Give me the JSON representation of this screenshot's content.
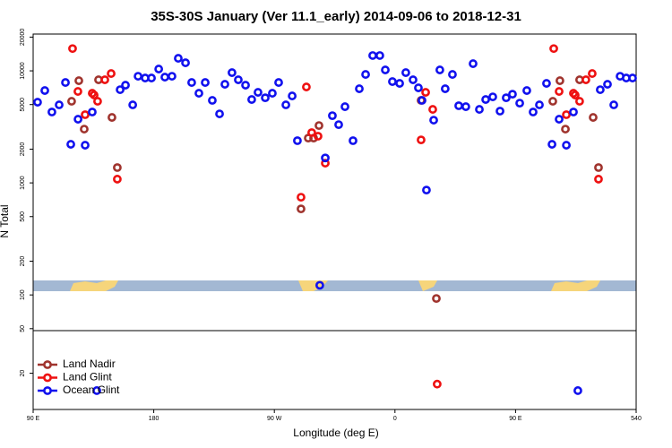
{
  "chart_data": {
    "type": "scatter",
    "title": "35S-30S January (Ver 11.1_early)   2014-09-06 to 2018-12-31",
    "x_label": "Longitude (deg E)",
    "y_label": "N Total",
    "xlim": [
      90,
      540
    ],
    "xticks": [
      {
        "value": 90,
        "label": "90 E"
      },
      180,
      {
        "value": 270,
        "label": "90 W"
      },
      {
        "value": 360,
        "label": "0"
      },
      {
        "value": 450,
        "label": "90 E"
      },
      540
    ],
    "ylim": [
      9.5,
      21300
    ],
    "yticks": [
      20,
      50,
      100,
      200,
      500,
      1000,
      2000,
      5000,
      10000,
      20000
    ],
    "y_scale": "log",
    "legend": "bottom-left",
    "series": [
      {
        "name": "Land Nadir",
        "color": "#a0342e",
        "x": [
          118.7,
          124.1,
          128.1,
          138.8,
          148.8,
          152.8,
          289.9,
          295.3,
          299.3,
          303.3,
          379.5,
          390.9,
          477.8,
          483.1,
          487.2,
          497.8,
          507.9,
          511.9
        ],
        "values": [
          5350,
          8170,
          3020,
          8320,
          3840,
          1370,
          586,
          2510,
          2510,
          3250,
          5450,
          93,
          5350,
          8170,
          3020,
          8320,
          3840,
          1370
        ]
      },
      {
        "name": "Land Glint",
        "color": "#ee1111",
        "x": [
          119.4,
          123.4,
          128.8,
          134.1,
          135.5,
          138.1,
          143.5,
          148.2,
          152.8,
          289.9,
          293.9,
          297.9,
          302.6,
          308,
          379.5,
          382.9,
          388.2,
          391.5,
          478.5,
          482.5,
          487.9,
          493.2,
          494.5,
          497.8,
          502.5,
          507.2,
          511.9
        ],
        "values": [
          15800,
          6550,
          4060,
          6310,
          6080,
          5350,
          8320,
          9460,
          1080,
          745,
          7180,
          2810,
          2610,
          1500,
          2420,
          6430,
          4530,
          16,
          15800,
          6550,
          4060,
          6310,
          6080,
          5350,
          8320,
          9460,
          1080
        ]
      },
      {
        "name": "Ocean Glint",
        "color": "#1111ee",
        "x": [
          93.3,
          98.7,
          104,
          109.4,
          114.1,
          118.1,
          123.5,
          128.8,
          134.1,
          137.5,
          154.9,
          158.9,
          164.3,
          168.3,
          173.6,
          178.3,
          183.7,
          188.3,
          193.6,
          198.3,
          203.7,
          208.3,
          213.7,
          218.4,
          223.7,
          229.1,
          233.1,
          238.4,
          243.1,
          248.5,
          253.1,
          257.8,
          263.2,
          268.5,
          273.2,
          278.6,
          283.3,
          287.2,
          303.9,
          308,
          313.3,
          318,
          322.7,
          328.7,
          333.4,
          338.1,
          343.4,
          348.7,
          352.8,
          358.1,
          363.5,
          368.1,
          373.5,
          377.5,
          380.2,
          383.5,
          388.9,
          393.5,
          397.5,
          402.9,
          407.6,
          412.9,
          418.3,
          423,
          427.7,
          433,
          438.4,
          443,
          447.7,
          453.1,
          458.4,
          463.1,
          467.8,
          473.1,
          477.2,
          482.5,
          487.9,
          493.2,
          496.5,
          513.2,
          518.6,
          523.3,
          528,
          532.6,
          537.3
        ],
        "values": [
          5250,
          6670,
          4290,
          4970,
          7870,
          2210,
          3700,
          2170,
          4290,
          14,
          6790,
          7450,
          4970,
          8950,
          8630,
          8630,
          10380,
          8790,
          8950,
          12940,
          11800,
          7870,
          6310,
          7870,
          5450,
          4130,
          7590,
          9640,
          8320,
          7450,
          5550,
          6430,
          5750,
          6310,
          7870,
          4970,
          5970,
          2380,
          122,
          1670,
          3980,
          3310,
          4790,
          2380,
          6920,
          9290,
          13700,
          13700,
          10190,
          8020,
          7730,
          9640,
          8320,
          7050,
          5450,
          863,
          3630,
          10190,
          6920,
          9290,
          4880,
          4790,
          11590,
          4530,
          5550,
          5860,
          4370,
          5750,
          6190,
          5150,
          6670,
          4290,
          4970,
          7730,
          2210,
          3700,
          2170,
          4290,
          14,
          6790,
          7590,
          4970,
          8950,
          8630,
          8630
        ]
      }
    ]
  }
}
